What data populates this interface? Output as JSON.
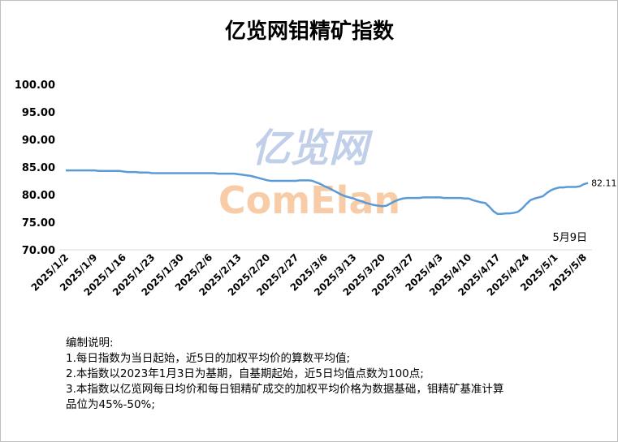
{
  "chart_data": {
    "type": "line",
    "title": "亿览网钼精矿指数",
    "watermark": [
      "亿览网",
      "ComElan"
    ],
    "annotation": "5月9日",
    "categories": [
      "2025/1/2",
      null,
      null,
      null,
      null,
      null,
      null,
      "2025/1/9",
      null,
      null,
      null,
      null,
      null,
      null,
      "2025/1/16",
      null,
      null,
      null,
      null,
      null,
      null,
      "2025/1/23",
      null,
      null,
      null,
      null,
      null,
      null,
      "2025/1/30",
      null,
      null,
      null,
      null,
      null,
      null,
      "2025/2/6",
      null,
      null,
      null,
      null,
      null,
      null,
      "2025/2/13",
      null,
      null,
      null,
      null,
      null,
      null,
      "2025/2/20",
      null,
      null,
      null,
      null,
      null,
      null,
      "2025/2/27",
      null,
      null,
      null,
      null,
      null,
      null,
      "2025/3/6",
      null,
      null,
      null,
      null,
      null,
      null,
      "2025/3/13",
      null,
      null,
      null,
      null,
      null,
      null,
      "2025/3/20",
      null,
      null,
      null,
      null,
      null,
      null,
      "2025/3/27",
      null,
      null,
      null,
      null,
      null,
      null,
      "2025/4/3",
      null,
      null,
      null,
      null,
      null,
      null,
      "2025/4/10",
      null,
      null,
      null,
      null,
      null,
      null,
      "2025/4/17",
      null,
      null,
      null,
      null,
      null,
      null,
      "2025/4/24",
      null,
      null,
      null,
      null,
      null,
      null,
      "2025/5/1",
      null,
      null,
      null,
      null,
      null,
      null,
      "2025/5/8",
      null
    ],
    "series": [
      {
        "name": "亿览网钼精矿指数",
        "color": "#5b9bd5",
        "values": [
          84.4,
          84.4,
          84.4,
          84.4,
          84.4,
          84.4,
          84.4,
          84.4,
          84.3,
          84.3,
          84.3,
          84.3,
          84.3,
          84.3,
          84.2,
          84.1,
          84.1,
          84.1,
          84.0,
          84.0,
          84.0,
          83.9,
          83.9,
          83.9,
          83.9,
          83.9,
          83.9,
          83.9,
          83.9,
          83.9,
          83.9,
          83.9,
          83.9,
          83.9,
          83.9,
          83.9,
          83.9,
          83.8,
          83.8,
          83.8,
          83.8,
          83.8,
          83.7,
          83.6,
          83.5,
          83.4,
          83.2,
          83.0,
          82.8,
          82.6,
          82.5,
          82.5,
          82.5,
          82.5,
          82.5,
          82.5,
          82.5,
          82.6,
          82.6,
          82.6,
          82.5,
          82.2,
          81.9,
          81.5,
          81.2,
          80.8,
          80.4,
          80.0,
          79.7,
          79.5,
          79.3,
          79.0,
          78.8,
          78.5,
          78.3,
          78.1,
          78.0,
          77.9,
          78.0,
          78.4,
          78.8,
          79.1,
          79.3,
          79.4,
          79.4,
          79.4,
          79.4,
          79.5,
          79.5,
          79.5,
          79.5,
          79.5,
          79.4,
          79.4,
          79.4,
          79.4,
          79.4,
          79.3,
          79.3,
          79.0,
          78.8,
          78.6,
          78.5,
          77.8,
          77.0,
          76.5,
          76.5,
          76.6,
          76.6,
          76.7,
          76.9,
          77.5,
          78.3,
          79.0,
          79.3,
          79.5,
          79.7,
          80.3,
          80.8,
          81.1,
          81.3,
          81.3,
          81.4,
          81.4,
          81.4,
          81.5,
          81.9,
          82.11
        ]
      }
    ],
    "ylim": [
      70,
      100
    ],
    "yticks": [
      {
        "value": 70,
        "label": "70.00"
      },
      {
        "value": 75,
        "label": "75.00"
      },
      {
        "value": 80,
        "label": "80.00"
      },
      {
        "value": 85,
        "label": "85.00"
      },
      {
        "value": 90,
        "label": "90.00"
      },
      {
        "value": 95,
        "label": "95.00"
      },
      {
        "value": 100,
        "label": "100.00"
      }
    ],
    "grid": false,
    "notes": [
      "编制说明:",
      "1.每日指数为当日起始，近5日的加权平均价的算数平均值;",
      "2.本指数以2023年1月3日为基期，自基期起始，近5日均值点数为100点;",
      "3.本指数以亿览网每日均价和每日钼精矿成交的加权平均价格为数据基础，钼精矿基准计算",
      "品位为45%-50%;"
    ]
  }
}
